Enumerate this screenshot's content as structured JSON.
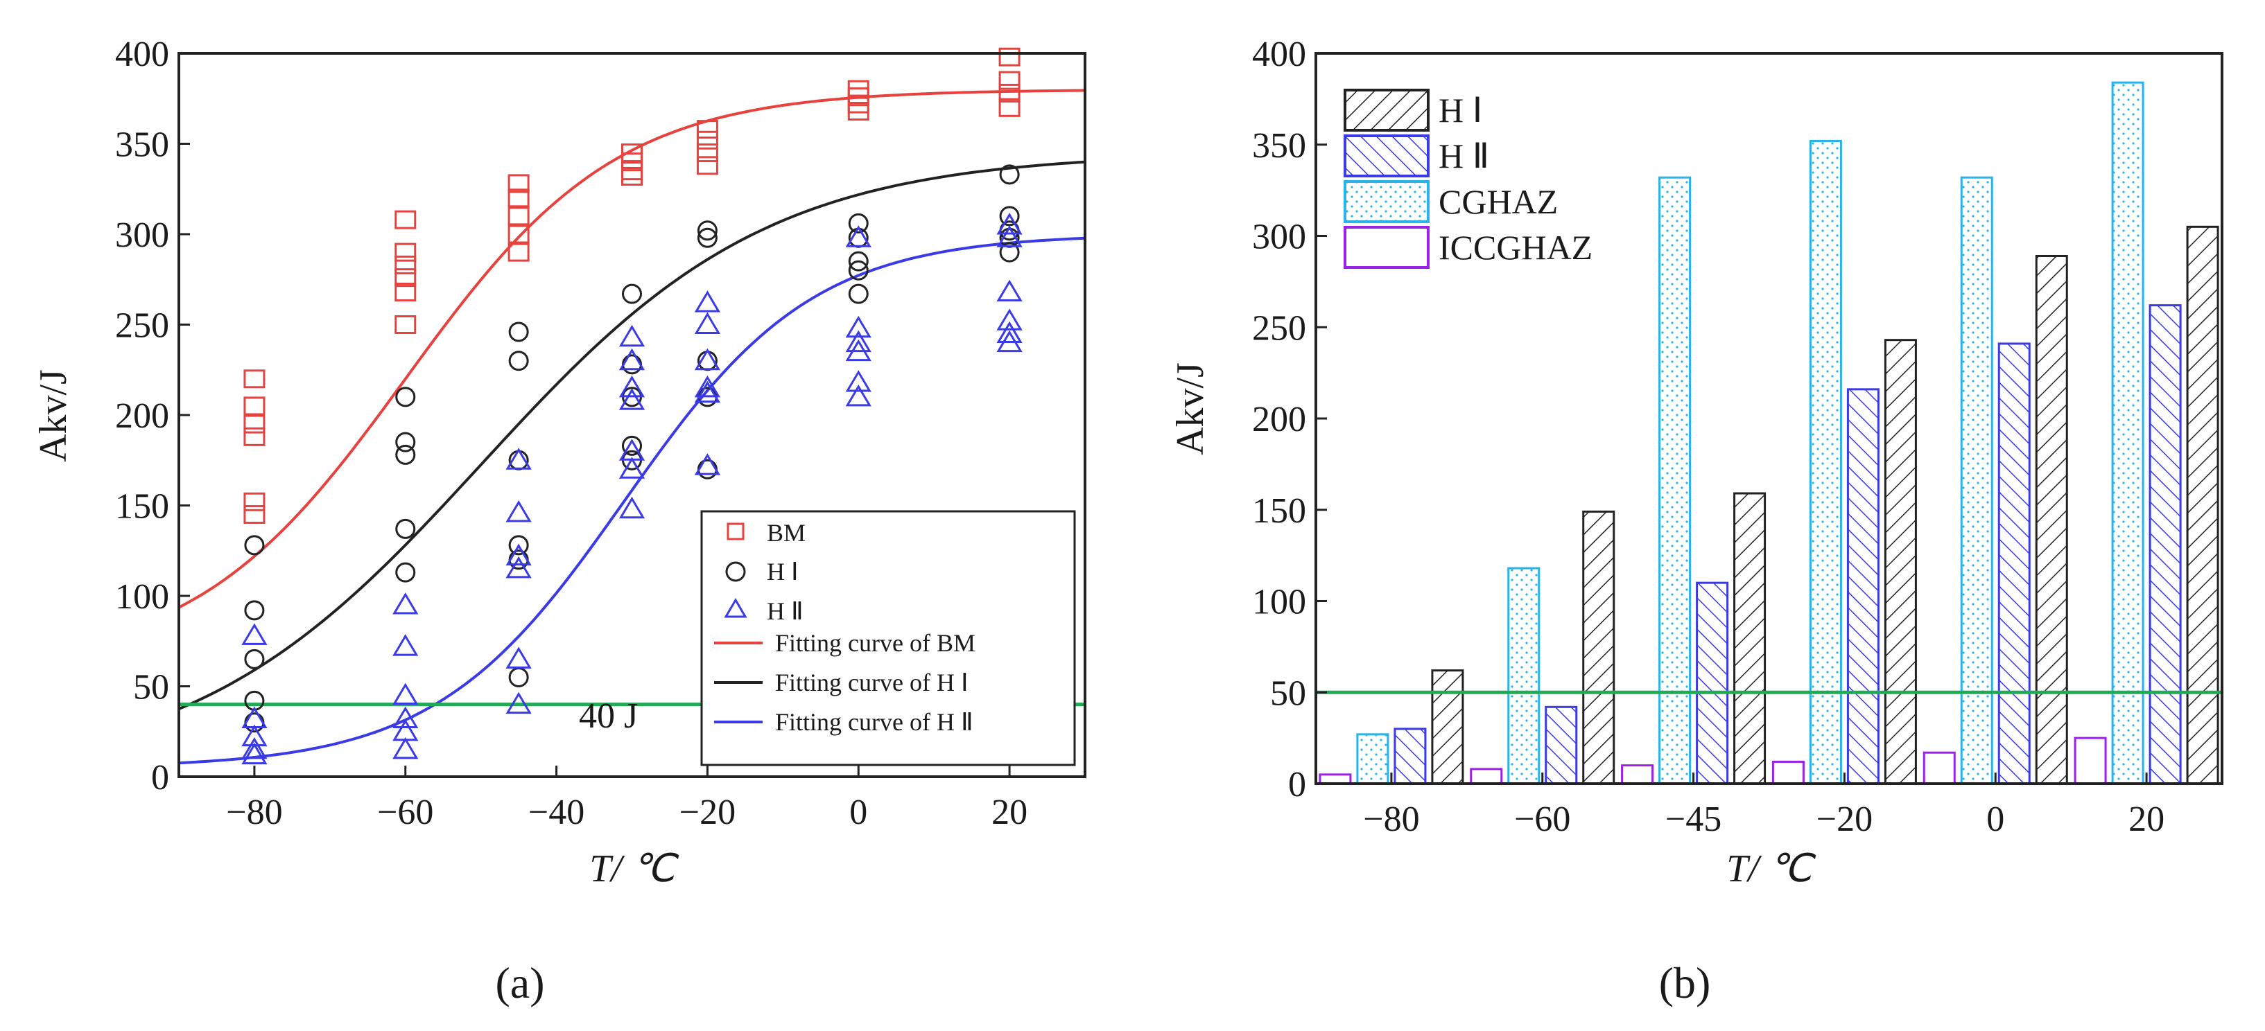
{
  "colors": {
    "bm": "#e8423f",
    "h1": "#222222",
    "h2": "#3a3ae6",
    "green": "#22aa55",
    "cgh": "#2ab3e8",
    "icc": "#9a22e6"
  },
  "chart_data": [
    {
      "type": "scatter",
      "caption": "(a)",
      "xlabel": "T/ ℃",
      "ylabel": "Akv/J",
      "xlim": [
        -90,
        30
      ],
      "ylim": [
        0,
        400
      ],
      "xticks": [
        "-80",
        "-60",
        "-40",
        "-20",
        "0",
        "20"
      ],
      "yticks": [
        "0",
        "50",
        "100",
        "150",
        "200",
        "250",
        "300",
        "350",
        "400"
      ],
      "reference_line": {
        "value": 40,
        "label": "40 J"
      },
      "legend": [
        "BM",
        "H Ⅰ",
        "H Ⅱ",
        "Fitting curve of BM",
        "Fitting curve of H Ⅰ",
        "Fitting curve of H Ⅱ"
      ],
      "series": [
        {
          "name": "BM",
          "marker": "square",
          "points": [
            [
              -80,
              220
            ],
            [
              -80,
              205
            ],
            [
              -80,
              195
            ],
            [
              -80,
              188
            ],
            [
              -80,
              152
            ],
            [
              -80,
              145
            ],
            [
              -60,
              308
            ],
            [
              -60,
              290
            ],
            [
              -60,
              283
            ],
            [
              -60,
              276
            ],
            [
              -60,
              268
            ],
            [
              -60,
              250
            ],
            [
              -45,
              328
            ],
            [
              -45,
              320
            ],
            [
              -45,
              310
            ],
            [
              -45,
              300
            ],
            [
              -45,
              290
            ],
            [
              -30,
              345
            ],
            [
              -30,
              340
            ],
            [
              -30,
              335
            ],
            [
              -30,
              332
            ],
            [
              -20,
              358
            ],
            [
              -20,
              352
            ],
            [
              -20,
              345
            ],
            [
              -20,
              338
            ],
            [
              0,
              380
            ],
            [
              0,
              376
            ],
            [
              0,
              372
            ],
            [
              0,
              368
            ],
            [
              20,
              398
            ],
            [
              20,
              385
            ],
            [
              20,
              378
            ],
            [
              20,
              370
            ]
          ]
        },
        {
          "name": "H Ⅰ",
          "marker": "circle",
          "points": [
            [
              -80,
              128
            ],
            [
              -80,
              92
            ],
            [
              -80,
              65
            ],
            [
              -80,
              42
            ],
            [
              -80,
              30
            ],
            [
              -60,
              210
            ],
            [
              -60,
              185
            ],
            [
              -60,
              178
            ],
            [
              -60,
              137
            ],
            [
              -60,
              113
            ],
            [
              -45,
              246
            ],
            [
              -45,
              230
            ],
            [
              -45,
              175
            ],
            [
              -45,
              128
            ],
            [
              -45,
              120
            ],
            [
              -45,
              55
            ],
            [
              -30,
              267
            ],
            [
              -30,
              228
            ],
            [
              -30,
              210
            ],
            [
              -30,
              183
            ],
            [
              -30,
              175
            ],
            [
              -20,
              302
            ],
            [
              -20,
              298
            ],
            [
              -20,
              230
            ],
            [
              -20,
              210
            ],
            [
              -20,
              170
            ],
            [
              0,
              306
            ],
            [
              0,
              298
            ],
            [
              0,
              285
            ],
            [
              0,
              280
            ],
            [
              0,
              267
            ],
            [
              20,
              333
            ],
            [
              20,
              310
            ],
            [
              20,
              302
            ],
            [
              20,
              298
            ],
            [
              20,
              290
            ]
          ]
        },
        {
          "name": "H Ⅱ",
          "marker": "triangle",
          "points": [
            [
              -80,
              78
            ],
            [
              -80,
              32
            ],
            [
              -80,
              22
            ],
            [
              -80,
              15
            ],
            [
              -80,
              12
            ],
            [
              -60,
              95
            ],
            [
              -60,
              72
            ],
            [
              -60,
              45
            ],
            [
              -60,
              32
            ],
            [
              -60,
              25
            ],
            [
              -60,
              15
            ],
            [
              -45,
              175
            ],
            [
              -45,
              146
            ],
            [
              -45,
              122
            ],
            [
              -45,
              115
            ],
            [
              -45,
              65
            ],
            [
              -45,
              40
            ],
            [
              -30,
              243
            ],
            [
              -30,
              230
            ],
            [
              -30,
              215
            ],
            [
              -30,
              208
            ],
            [
              -30,
              180
            ],
            [
              -30,
              170
            ],
            [
              -30,
              148
            ],
            [
              -20,
              262
            ],
            [
              -20,
              250
            ],
            [
              -20,
              230
            ],
            [
              -20,
              215
            ],
            [
              -20,
              212
            ],
            [
              -20,
              172
            ],
            [
              0,
              298
            ],
            [
              0,
              248
            ],
            [
              0,
              240
            ],
            [
              0,
              235
            ],
            [
              0,
              218
            ],
            [
              0,
              210
            ],
            [
              20,
              305
            ],
            [
              20,
              298
            ],
            [
              20,
              268
            ],
            [
              20,
              252
            ],
            [
              20,
              245
            ],
            [
              20,
              240
            ]
          ]
        }
      ],
      "curves": [
        {
          "name": "Fitting curve of BM",
          "A1": 60,
          "A2": 380,
          "x0": -60,
          "dx": 14
        },
        {
          "name": "Fitting curve of H Ⅰ",
          "A1": 0,
          "A2": 345,
          "x0": -50,
          "dx": 19
        },
        {
          "name": "Fitting curve of H Ⅱ",
          "A1": 5,
          "A2": 300,
          "x0": -31,
          "dx": 12.5
        }
      ]
    },
    {
      "type": "bar",
      "caption": "(b)",
      "xlabel": "T/ ℃",
      "ylabel": "Akv/J",
      "ylim": [
        0,
        400
      ],
      "yticks": [
        "0",
        "50",
        "100",
        "150",
        "200",
        "250",
        "300",
        "350",
        "400"
      ],
      "categories": [
        "-80",
        "-60",
        "-45",
        "-20",
        "0",
        "20"
      ],
      "reference_line": {
        "value": 50
      },
      "series": [
        {
          "name": "ICCGHAZ",
          "values": [
            5,
            8,
            10,
            12,
            17,
            25
          ]
        },
        {
          "name": "CGHAZ",
          "values": [
            27,
            118,
            332,
            352,
            332,
            384
          ]
        },
        {
          "name": "H Ⅱ",
          "values": [
            30,
            42,
            110,
            216,
            241,
            262
          ]
        },
        {
          "name": "H Ⅰ",
          "values": [
            62,
            149,
            159,
            243,
            289,
            305
          ]
        }
      ],
      "legend": [
        "H Ⅰ",
        "H Ⅱ",
        "CGHAZ",
        "ICCGHAZ"
      ]
    }
  ]
}
